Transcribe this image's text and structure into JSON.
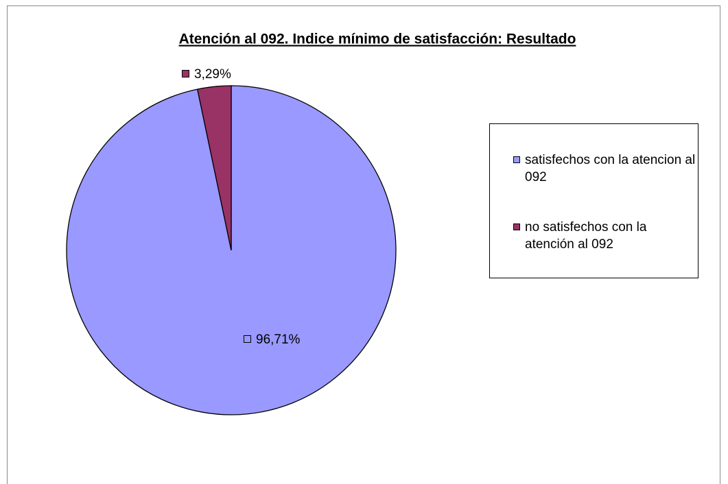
{
  "chart_data": {
    "type": "pie",
    "title": "Atención al 092. Indice mínimo de satisfacción: Resultado",
    "categories": [
      "satisfechos con la atencion al 092",
      "no satisfechos con la atención al 092"
    ],
    "values": [
      96.71,
      3.29
    ],
    "value_labels": [
      "96,71%",
      "3,29%"
    ],
    "colors": [
      "#9999ff",
      "#993366"
    ],
    "legend": "right"
  }
}
